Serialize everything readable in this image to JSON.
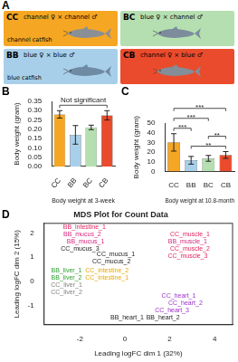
{
  "diagram": {
    "panel": "A",
    "boxes": [
      {
        "code": "CC",
        "color": "#f5a623",
        "text": "channel ♀ × channel ♂",
        "caption": "channel catfish"
      },
      {
        "code": "BC",
        "color": "#b5dfb0",
        "text": "blue ♀ × channel ♂"
      },
      {
        "code": "BB",
        "color": "#a8cfe9",
        "text": "blue ♀ × blue ♂",
        "caption": "blue catfish"
      },
      {
        "code": "CB",
        "color": "#ea4b2c",
        "text": "channel ♀ × blue ♂"
      }
    ]
  },
  "chart_data": [
    {
      "panel": "B",
      "type": "bar",
      "categories": [
        "CC",
        "BB",
        "BC",
        "CB"
      ],
      "values": [
        0.28,
        0.17,
        0.21,
        0.275
      ],
      "errors": [
        0.02,
        0.05,
        0.012,
        0.025
      ],
      "colors": [
        "#f5a623",
        "#a8cfe9",
        "#b5dfb0",
        "#ea4b2c"
      ],
      "x_label": "Body weight at 3-week",
      "y_label": "Body weight (gram)",
      "ylim": [
        0,
        0.35
      ],
      "yticks": [
        {
          "value": 0,
          "label": "0.00"
        },
        {
          "value": 0.05,
          "label": "0.05"
        },
        {
          "value": 0.1,
          "label": "0.10"
        },
        {
          "value": 0.15,
          "label": "0.15"
        },
        {
          "value": 0.2,
          "label": "0.20"
        },
        {
          "value": 0.25,
          "label": "0.25"
        },
        {
          "value": 0.3,
          "label": "0.30"
        },
        {
          "value": 0.35,
          "label": "0.35"
        }
      ],
      "grid": false,
      "annotations": [
        {
          "text": "Not significant",
          "from": "CC",
          "to": "CB"
        }
      ]
    },
    {
      "panel": "C",
      "type": "bar",
      "categories": [
        "CC",
        "BB",
        "BC",
        "CB"
      ],
      "values": [
        30,
        11.5,
        13.5,
        17
      ],
      "errors": [
        9,
        4,
        3,
        3.5
      ],
      "colors": [
        "#f5a623",
        "#a8cfe9",
        "#b5dfb0",
        "#ea4b2c"
      ],
      "x_label": "Body weight at 10.8-month",
      "y_label": "Body weight (gram)",
      "ylim": [
        0,
        50
      ],
      "yticks": [
        0,
        10,
        20,
        30,
        40,
        50
      ],
      "grid": false,
      "annotations": [
        {
          "text": "**",
          "from": "BB",
          "to": "CB"
        },
        {
          "text": "**",
          "from": "BC",
          "to": "CB"
        },
        {
          "text": "***",
          "from": "CC",
          "to": "BB"
        },
        {
          "text": "***",
          "from": "CC",
          "to": "BC"
        },
        {
          "text": "***",
          "from": "CC",
          "to": "CB"
        }
      ]
    },
    {
      "panel": "D",
      "type": "scatter",
      "title": "MDS Plot for Count Data",
      "x_label": "Leading logFC dim 1 (32%)",
      "y_label": "Leading logFC dim 2 (15%)",
      "point_labels": [
        "BB_intestine_1",
        "BB_mucus_2",
        "BB_mucus_1",
        "CC_mucus_3",
        "CC_mucus_1",
        "CC_mucus_2",
        "CC_muscle_1",
        "BB_muscle_1",
        "CC_muscle_2",
        "CC_muscle_3",
        "BB_liver_1",
        "BB_liver_2",
        "CC_liver_1",
        "CC_liver_2",
        "CC_intestine_2",
        "CC_intestine_1",
        "CC_heart_1",
        "CC_heart_2",
        "CC_heart_3",
        "BB_heart_1",
        "BB_heart_2"
      ],
      "x": [
        -1.8,
        -1.9,
        -1.75,
        -2.0,
        -0.4,
        -0.6,
        2.9,
        2.8,
        2.9,
        2.8,
        -2.6,
        -2.6,
        -2.6,
        -2.6,
        -0.8,
        -0.8,
        2.4,
        2.7,
        2.1,
        0.1,
        1.7
      ],
      "values": [
        2.25,
        1.95,
        1.65,
        1.35,
        1.1,
        0.8,
        1.95,
        1.65,
        1.35,
        1.05,
        0.45,
        0.15,
        -0.15,
        -0.45,
        0.45,
        0.15,
        -0.6,
        -0.9,
        -1.2,
        -1.5,
        -1.5
      ],
      "colors": [
        "#e0245e",
        "#d6277d",
        "#d6277d",
        "#222222",
        "#222222",
        "#222222",
        "#e0245e",
        "#d6277d",
        "#e0245e",
        "#e0245e",
        "#2ca02c",
        "#2ca02c",
        "#7f7f7f",
        "#7f7f7f",
        "#e6a800",
        "#e6a800",
        "#9b30c8",
        "#9b30c8",
        "#9b30c8",
        "#222222",
        "#222222"
      ],
      "xlim": [
        -3.6,
        4.8
      ],
      "xticks": [
        -2,
        0,
        2,
        4
      ],
      "ylim": [
        -1.8,
        2.4
      ],
      "yticks": [
        -1,
        0,
        1,
        2
      ],
      "grid": false
    }
  ]
}
